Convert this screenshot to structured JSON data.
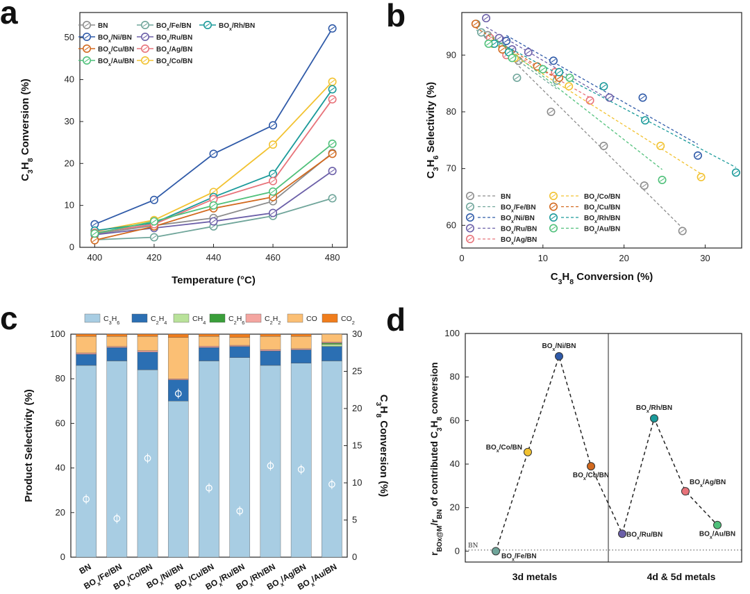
{
  "panel_labels": {
    "a": "a",
    "b": "b",
    "c": "c",
    "d": "d"
  },
  "chart_data": [
    {
      "panel": "a",
      "type": "line",
      "xlabel": "Temperature (°C)",
      "ylabel": "C3H8 Conversion (%)",
      "xlim": [
        395,
        485
      ],
      "ylim": [
        0,
        56
      ],
      "xticks": [
        400,
        420,
        440,
        460,
        480
      ],
      "yticks": [
        0,
        10,
        20,
        30,
        40,
        50
      ],
      "x": [
        400,
        420,
        440,
        460,
        480
      ],
      "series": [
        {
          "name": "BN",
          "color": "#8c8c8c",
          "values": [
            3.2,
            5.2,
            7.0,
            11.0,
            22.5
          ]
        },
        {
          "name": "BOx/Fe/BN",
          "color": "#6fa59a",
          "values": [
            1.8,
            2.4,
            5.0,
            7.5,
            11.7
          ]
        },
        {
          "name": "BOx/Co/BN",
          "color": "#f2c230",
          "values": [
            3.8,
            6.5,
            13.2,
            24.5,
            39.5
          ]
        },
        {
          "name": "BOx/Ni/BN",
          "color": "#2f5aa8",
          "values": [
            5.5,
            11.3,
            22.3,
            29.1,
            52.2
          ]
        },
        {
          "name": "BOx/Ru/BN",
          "color": "#6b5fa8",
          "values": [
            3.0,
            4.6,
            6.2,
            8.2,
            18.2
          ]
        },
        {
          "name": "BOx/Rh/BN",
          "color": "#1a9a9a",
          "values": [
            4.0,
            5.8,
            12.0,
            17.5,
            37.7
          ]
        },
        {
          "name": "BOx/Cu/BN",
          "color": "#d2691e",
          "values": [
            1.7,
            5.0,
            9.3,
            12.0,
            22.3
          ]
        },
        {
          "name": "BOx/Ag/BN",
          "color": "#e8737a",
          "values": [
            3.5,
            5.5,
            11.5,
            15.8,
            35.3
          ]
        },
        {
          "name": "BOx/Au/BN",
          "color": "#4fc07a",
          "values": [
            3.3,
            6.2,
            10.0,
            13.3,
            24.7
          ]
        }
      ]
    },
    {
      "panel": "b",
      "type": "scatter",
      "xlabel": "C3H8 Conversion (%)",
      "ylabel": "C3H6 Selectivity (%)",
      "xlim": [
        0,
        34.5
      ],
      "ylim": [
        56,
        97.5
      ],
      "xticks": [
        0,
        10,
        20,
        30
      ],
      "yticks": [
        60,
        70,
        80,
        90
      ],
      "series": [
        {
          "name": "BN",
          "color": "#8c8c8c",
          "x": [
            3.2,
            5.2,
            7.0,
            11.0,
            17.5,
            22.5,
            27.2
          ],
          "y": [
            93.5,
            91.0,
            89.0,
            80.0,
            74.0,
            67.0,
            59.0
          ]
        },
        {
          "name": "BOx/Fe/BN",
          "color": "#6fa59a",
          "x": [
            1.8,
            2.4,
            5.0,
            6.8,
            11.7
          ],
          "y": [
            95.5,
            94.0,
            91.5,
            86.0,
            85.5
          ]
        },
        {
          "name": "BOx/Ni/BN",
          "color": "#2f5aa8",
          "x": [
            5.5,
            11.3,
            22.3,
            29.1
          ],
          "y": [
            92.5,
            89.0,
            82.5,
            72.3
          ]
        },
        {
          "name": "BOx/Ru/BN",
          "color": "#6b5fa8",
          "x": [
            3.0,
            4.6,
            6.2,
            8.2,
            18.2
          ],
          "y": [
            96.5,
            93.0,
            91.0,
            90.5,
            82.5
          ]
        },
        {
          "name": "BOx/Ag/BN",
          "color": "#e8737a",
          "x": [
            3.5,
            5.5,
            11.5,
            15.8
          ],
          "y": [
            93.0,
            90.0,
            87.0,
            82.0
          ]
        },
        {
          "name": "BOx/Co/BN",
          "color": "#f2c230",
          "x": [
            3.8,
            6.5,
            13.2,
            24.5,
            29.5
          ],
          "y": [
            92.0,
            89.5,
            84.5,
            74.0,
            68.5
          ]
        },
        {
          "name": "BOx/Cu/BN",
          "color": "#d2691e",
          "x": [
            1.7,
            5.0,
            9.3,
            12.0
          ],
          "y": [
            95.5,
            91.0,
            88.0,
            86.0
          ]
        },
        {
          "name": "BOx/Rh/BN",
          "color": "#1a9a9a",
          "x": [
            4.0,
            5.8,
            12.0,
            17.5,
            22.6,
            33.8
          ],
          "y": [
            92.0,
            90.5,
            87.0,
            84.5,
            78.5,
            69.3
          ]
        },
        {
          "name": "BOx/Au/BN",
          "color": "#4fc07a",
          "x": [
            3.3,
            6.2,
            10.0,
            13.3,
            24.7
          ],
          "y": [
            92.0,
            89.5,
            87.5,
            86.0,
            68.0
          ]
        }
      ]
    },
    {
      "panel": "c",
      "type": "bar",
      "xlabel": "",
      "ylabel": "Product Selectivity (%)",
      "y2label": "C3H8 Conversion (%)",
      "ylim": [
        0,
        100
      ],
      "y2lim": [
        0,
        30
      ],
      "yticks": [
        0,
        20,
        40,
        60,
        80,
        100
      ],
      "y2ticks": [
        0,
        5,
        10,
        15,
        20,
        25,
        30
      ],
      "categories": [
        "BN",
        "BOx/Fe/BN",
        "BOx/Co/BN",
        "BOx/Ni/BN",
        "BOx/Cu/BN",
        "BOx/Ru/BN",
        "BOx/Rh/BN",
        "BOx/Ag/BN",
        "BOx/Au/BN"
      ],
      "series": [
        {
          "name": "C3H6",
          "color": "#a8cde3",
          "values": [
            86,
            88,
            84,
            70,
            88,
            89.5,
            86,
            87,
            88
          ]
        },
        {
          "name": "C2H4",
          "color": "#2b6fb3",
          "values": [
            5,
            6,
            8,
            9.5,
            6,
            5,
            6.5,
            6,
            6.5
          ]
        },
        {
          "name": "CH4",
          "color": "#b9e29a",
          "values": [
            0,
            0,
            0,
            0,
            0,
            0,
            0,
            0,
            1
          ]
        },
        {
          "name": "C2H6",
          "color": "#3a9e3a",
          "values": [
            0,
            0,
            0,
            0,
            0,
            0,
            0,
            0,
            0.5
          ]
        },
        {
          "name": "C2H2",
          "color": "#f4a5a0",
          "values": [
            0.6,
            0.5,
            0.6,
            0.5,
            0.6,
            0.5,
            0.6,
            0.5,
            0.5
          ]
        },
        {
          "name": "CO",
          "color": "#fbbf74",
          "values": [
            7.4,
            4.5,
            6.4,
            18.5,
            4.4,
            3.5,
            5.9,
            5.5,
            3.5
          ]
        },
        {
          "name": "CO2",
          "color": "#f07d1c",
          "values": [
            1,
            1,
            1,
            1.5,
            1,
            1.5,
            1,
            1,
            0
          ]
        }
      ],
      "conversion_markers": [
        7.8,
        5.2,
        13.3,
        22.0,
        9.3,
        6.2,
        12.3,
        11.8,
        9.8
      ]
    },
    {
      "panel": "d",
      "type": "scatter",
      "xlabel_left": "3d metals",
      "xlabel_right": "4d & 5d metals",
      "ylabel": "rBOx@M/rBN of contributed C3H8 conversion",
      "ylim": [
        -5,
        100
      ],
      "yticks": [
        0,
        20,
        40,
        60,
        80,
        100
      ],
      "reference_label": "BN",
      "reference_value": 0.5,
      "points": [
        {
          "label": "BOx/Fe/BN",
          "value": 0,
          "color": "#6fa59a",
          "group": "3d"
        },
        {
          "label": "BOx/Co/BN",
          "value": 45.5,
          "color": "#f2c230",
          "group": "3d"
        },
        {
          "label": "BOx/Ni/BN",
          "value": 89.5,
          "color": "#2f5aa8",
          "group": "3d"
        },
        {
          "label": "BOx/Cu/BN",
          "value": 39,
          "color": "#d2691e",
          "group": "3d"
        },
        {
          "label": "BOx/Ru/BN",
          "value": 8,
          "color": "#6b5fa8",
          "group": "4d5d"
        },
        {
          "label": "BOx/Rh/BN",
          "value": 61,
          "color": "#1a9a9a",
          "group": "4d5d"
        },
        {
          "label": "BOx/Ag/BN",
          "value": 27.5,
          "color": "#e8737a",
          "group": "4d5d"
        },
        {
          "label": "BOx/Au/BN",
          "value": 12,
          "color": "#4fc07a",
          "group": "4d5d"
        }
      ]
    }
  ]
}
